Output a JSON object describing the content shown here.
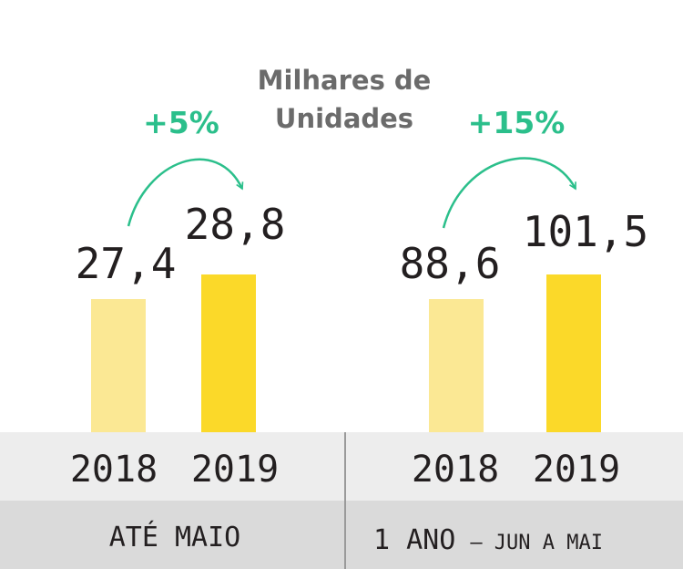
{
  "chart_data": {
    "type": "bar",
    "unit_label": [
      "Milhares de",
      "Unidades"
    ],
    "colors": {
      "y2018": "#fbe894",
      "y2019": "#fbd929",
      "growth": "#2bbf8b",
      "band_light": "#ededed",
      "band_dark": "#dadada"
    },
    "groups": [
      {
        "period": "ATÉ MAIO",
        "categories": [
          "2018",
          "2019"
        ],
        "values": [
          27.4,
          28.8
        ],
        "value_labels": [
          "27,4",
          "28,8"
        ],
        "growth": "+5%"
      },
      {
        "period": "1 ANO",
        "period_suffix": "– JUN A MAI",
        "categories": [
          "2018",
          "2019"
        ],
        "values": [
          88.6,
          101.5
        ],
        "value_labels": [
          "88,6",
          "101,5"
        ],
        "growth": "+15%"
      }
    ]
  }
}
